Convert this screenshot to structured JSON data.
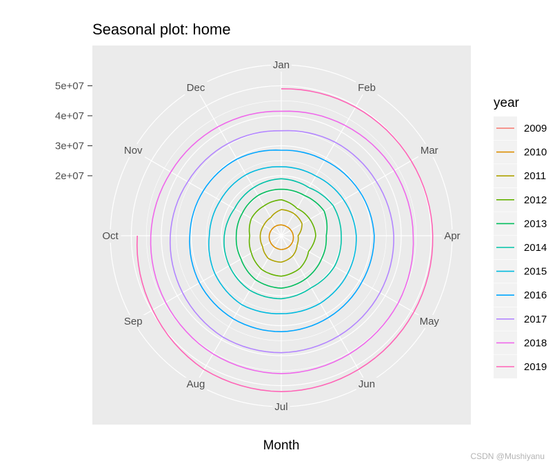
{
  "chart_data": {
    "type": "line",
    "coord": "polar",
    "title": "Seasonal plot: home",
    "xlabel": "Month",
    "ylabel": "",
    "categories": [
      "Jan",
      "Feb",
      "Mar",
      "Apr",
      "May",
      "Jun",
      "Jul",
      "Aug",
      "Sep",
      "Oct",
      "Nov",
      "Dec"
    ],
    "ylim": [
      0,
      57000000
    ],
    "yticks": [
      20000000,
      30000000,
      40000000,
      50000000
    ],
    "ytick_labels": [
      "2e+07",
      "3e+07",
      "4e+07",
      "5e+07"
    ],
    "grid": true,
    "legend": {
      "title": "year",
      "position": "right"
    },
    "series": [
      {
        "name": "2009",
        "color": "#F8766D",
        "values": [
          null,
          null,
          null,
          null,
          null,
          null,
          null,
          null,
          null,
          null,
          null,
          null
        ]
      },
      {
        "name": "2010",
        "color": "#DB8E00",
        "values": [
          3600000,
          3500000,
          3700000,
          4000000,
          4300000,
          4500000,
          4600000,
          4400000,
          4200000,
          4000000,
          3800000,
          3700000
        ]
      },
      {
        "name": "2011",
        "color": "#AEA200",
        "values": [
          8700000,
          8500000,
          8000000,
          5600000,
          6100000,
          7700000,
          8800000,
          8700000,
          7200000,
          7000000,
          6800000,
          7000000
        ]
      },
      {
        "name": "2012",
        "color": "#64B200",
        "values": [
          12000000,
          10500000,
          11000000,
          11500000,
          10500000,
          12500000,
          13500000,
          13000000,
          11500000,
          10500000,
          11500000,
          11500000
        ]
      },
      {
        "name": "2013",
        "color": "#00BD5C",
        "values": [
          15500000,
          15500000,
          16500000,
          15000000,
          15500000,
          16500000,
          17500000,
          17000000,
          15500000,
          15000000,
          15000000,
          15500000
        ]
      },
      {
        "name": "2014",
        "color": "#00C1A7",
        "values": [
          19000000,
          18500000,
          20000000,
          20000000,
          20500000,
          20000000,
          21000000,
          21000000,
          20000000,
          19000000,
          18000000,
          18500000
        ]
      },
      {
        "name": "2015",
        "color": "#00BADE",
        "values": [
          23000000,
          23000000,
          24000000,
          25000000,
          25500000,
          26000000,
          26000000,
          26500000,
          25500000,
          24000000,
          23500000,
          23500000
        ]
      },
      {
        "name": "2016",
        "color": "#00A6FF",
        "values": [
          28500000,
          29000000,
          30000000,
          31000000,
          31000000,
          31500000,
          32000000,
          32000000,
          31500000,
          30500000,
          30000000,
          29500000
        ]
      },
      {
        "name": "2017",
        "color": "#B385FF",
        "values": [
          35000000,
          36000000,
          36500000,
          37500000,
          38000000,
          38500000,
          39000000,
          39000000,
          38000000,
          37000000,
          36000000,
          35500000
        ]
      },
      {
        "name": "2018",
        "color": "#EF67EB",
        "values": [
          41500000,
          42500000,
          43500000,
          44000000,
          45000000,
          45500000,
          46000000,
          45500000,
          44500000,
          43500000,
          42500000,
          42000000
        ]
      },
      {
        "name": "2019",
        "color": "#FF63B6",
        "values": [
          49000000,
          49500000,
          50000000,
          50500000,
          51000000,
          51500000,
          52000000,
          51500000,
          49500000,
          48000000,
          null,
          null
        ]
      }
    ]
  },
  "watermark": "CSDN @Mushiyanu"
}
